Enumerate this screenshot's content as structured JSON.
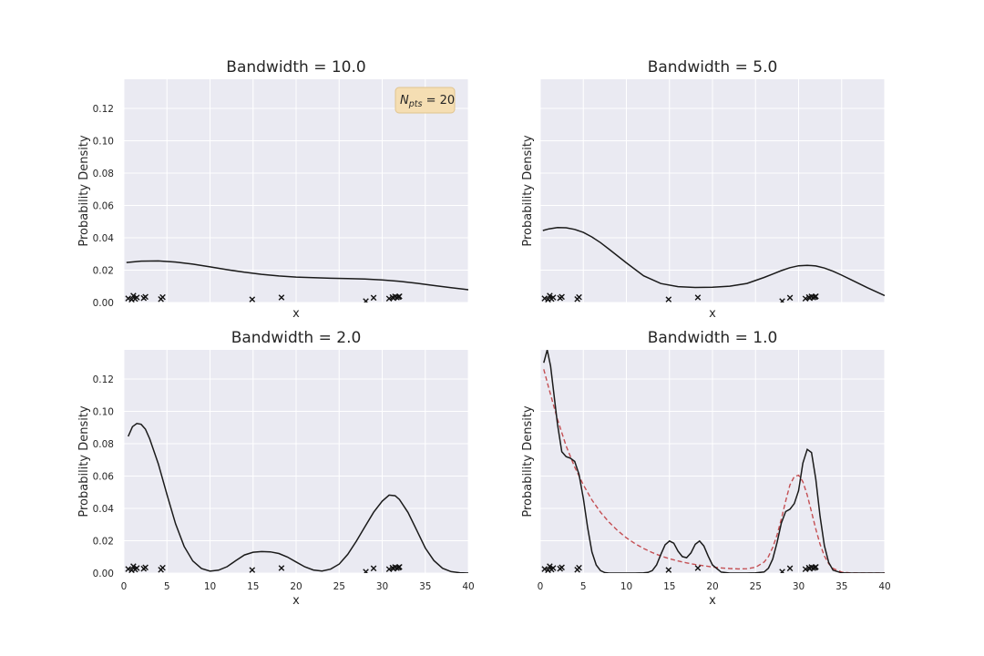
{
  "chart_data": [
    {
      "type": "line",
      "title": "Bandwidth = 10.0",
      "xlabel": "x",
      "ylabel": "Probability Density",
      "xlim": [
        0,
        40
      ],
      "ylim": [
        0,
        0.138
      ],
      "xticks": [
        0,
        5,
        10,
        15,
        20,
        25,
        30,
        35,
        40
      ],
      "yticks": [
        "0.00",
        "0.02",
        "0.04",
        "0.06",
        "0.08",
        "0.10",
        "0.12"
      ],
      "show_xticklabels": false,
      "show_yticklabels": true,
      "annotation": {
        "base": "N",
        "sub": "pts",
        "rest": " = 20"
      },
      "kde": {
        "x": [
          0.3,
          2,
          4,
          6,
          8,
          10,
          12,
          14,
          16,
          18,
          20,
          22,
          24,
          26,
          28,
          30,
          32,
          34,
          36,
          38,
          40
        ],
        "y": [
          0.0247,
          0.0256,
          0.0257,
          0.025,
          0.0237,
          0.022,
          0.0203,
          0.0187,
          0.0174,
          0.0164,
          0.0157,
          0.0153,
          0.015,
          0.0148,
          0.0145,
          0.0139,
          0.0131,
          0.0119,
          0.0105,
          0.0092,
          0.0079
        ]
      },
      "samples": [
        0.5,
        0.9,
        1.1,
        1.3,
        1.5,
        2.3,
        2.5,
        4.3,
        4.5,
        14.9,
        18.3,
        28.1,
        29.0,
        30.8,
        31.2,
        31.3,
        31.5,
        31.7,
        31.9,
        32.0
      ]
    },
    {
      "type": "line",
      "title": "Bandwidth = 5.0",
      "xlabel": "x",
      "ylabel": "Probability Density",
      "xlim": [
        0,
        40
      ],
      "ylim": [
        0,
        0.138
      ],
      "xticks": [
        0,
        5,
        10,
        15,
        20,
        25,
        30,
        35,
        40
      ],
      "yticks": [
        "0.00",
        "0.02",
        "0.04",
        "0.06",
        "0.08",
        "0.10",
        "0.12"
      ],
      "show_xticklabels": false,
      "show_yticklabels": false,
      "kde": {
        "x": [
          0.3,
          1,
          2,
          3,
          4,
          5,
          6,
          7,
          8,
          10,
          12,
          14,
          16,
          18,
          20,
          22,
          24,
          26,
          27,
          28,
          29,
          30,
          31,
          32,
          33,
          34,
          35,
          36,
          38,
          40
        ],
        "y": [
          0.0445,
          0.0455,
          0.0463,
          0.0462,
          0.0452,
          0.0433,
          0.0405,
          0.037,
          0.0329,
          0.0245,
          0.0165,
          0.0117,
          0.0098,
          0.0093,
          0.0094,
          0.0101,
          0.0118,
          0.0155,
          0.0176,
          0.0197,
          0.0215,
          0.0227,
          0.023,
          0.0226,
          0.0213,
          0.0193,
          0.0169,
          0.0143,
          0.0091,
          0.0043
        ]
      },
      "samples": [
        0.5,
        0.9,
        1.1,
        1.3,
        1.5,
        2.3,
        2.5,
        4.3,
        4.5,
        14.9,
        18.3,
        28.1,
        29.0,
        30.8,
        31.2,
        31.3,
        31.5,
        31.7,
        31.9,
        32.0
      ]
    },
    {
      "type": "line",
      "title": "Bandwidth = 2.0",
      "xlabel": "x",
      "ylabel": "Probability Density",
      "xlim": [
        0,
        40
      ],
      "ylim": [
        0,
        0.138
      ],
      "xticks": [
        "0",
        "5",
        "10",
        "15",
        "20",
        "25",
        "30",
        "35",
        "40"
      ],
      "yticks": [
        "0.00",
        "0.02",
        "0.04",
        "0.06",
        "0.08",
        "0.10",
        "0.12"
      ],
      "show_xticklabels": true,
      "show_yticklabels": true,
      "kde": {
        "x": [
          0.5,
          1,
          1.5,
          2,
          2.5,
          3,
          4,
          5,
          6,
          7,
          8,
          9,
          10,
          11,
          12,
          13,
          14,
          15,
          16,
          17,
          18,
          19,
          20,
          21,
          22,
          23,
          24,
          25,
          26,
          27,
          28,
          29,
          30,
          30.8,
          31.5,
          32,
          33,
          34,
          35,
          36,
          37,
          38,
          39,
          40
        ],
        "y": [
          0.0845,
          0.0905,
          0.0925,
          0.092,
          0.089,
          0.083,
          0.0675,
          0.0485,
          0.0305,
          0.0165,
          0.0075,
          0.0028,
          0.0012,
          0.0018,
          0.004,
          0.0078,
          0.0112,
          0.0129,
          0.0133,
          0.0131,
          0.0121,
          0.0099,
          0.0069,
          0.0039,
          0.0019,
          0.0013,
          0.0024,
          0.0056,
          0.0116,
          0.0197,
          0.0287,
          0.0376,
          0.0445,
          0.0482,
          0.0478,
          0.0455,
          0.0375,
          0.0266,
          0.0155,
          0.0078,
          0.003,
          0.0009,
          0.0002,
          0.0
        ]
      },
      "samples": [
        0.5,
        0.9,
        1.1,
        1.3,
        1.5,
        2.3,
        2.5,
        4.3,
        4.5,
        14.9,
        18.3,
        28.1,
        29.0,
        30.8,
        31.2,
        31.3,
        31.5,
        31.7,
        31.9,
        32.0
      ]
    },
    {
      "type": "line",
      "title": "Bandwidth = 1.0",
      "xlabel": "x",
      "ylabel": "Probability Density",
      "xlim": [
        0,
        40
      ],
      "ylim": [
        0,
        0.138
      ],
      "xticks": [
        "0",
        "5",
        "10",
        "15",
        "20",
        "25",
        "30",
        "35",
        "40"
      ],
      "yticks": [
        "0.00",
        "0.02",
        "0.04",
        "0.06",
        "0.08",
        "0.10",
        "0.12"
      ],
      "show_xticklabels": true,
      "show_yticklabels": false,
      "kde": {
        "x": [
          0.4,
          0.8,
          1.2,
          1.6,
          2.0,
          2.5,
          3.0,
          3.5,
          4.0,
          4.5,
          5.0,
          5.5,
          6.0,
          6.5,
          7.0,
          7.5,
          8.0,
          9.0,
          10,
          11,
          12,
          12.5,
          13,
          13.5,
          14,
          14.5,
          15,
          15.5,
          16,
          16.5,
          17,
          17.5,
          18,
          18.5,
          19,
          19.5,
          20,
          21,
          22,
          23,
          24,
          25,
          26,
          26.5,
          27,
          27.5,
          28,
          28.5,
          29,
          29.5,
          30,
          30.5,
          31,
          31.5,
          32,
          32.5,
          33,
          33.5,
          34,
          35,
          36,
          37,
          38,
          39,
          40
        ],
        "y": [
          0.13,
          0.138,
          0.128,
          0.11,
          0.092,
          0.075,
          0.072,
          0.071,
          0.069,
          0.061,
          0.046,
          0.028,
          0.013,
          0.005,
          0.0015,
          0.0003,
          0.0,
          0.0,
          0.0,
          0.0,
          0.0001,
          0.0004,
          0.0015,
          0.005,
          0.0115,
          0.0175,
          0.0198,
          0.0185,
          0.0135,
          0.0102,
          0.0095,
          0.0125,
          0.0178,
          0.0198,
          0.0168,
          0.0105,
          0.005,
          0.0006,
          0.0,
          0.0,
          0.0,
          0.0001,
          0.0007,
          0.003,
          0.0087,
          0.019,
          0.031,
          0.038,
          0.0395,
          0.043,
          0.051,
          0.068,
          0.0765,
          0.0745,
          0.058,
          0.035,
          0.017,
          0.0065,
          0.0018,
          0.0001,
          0.0,
          0.0,
          0.0,
          0.0,
          0.0
        ]
      },
      "reference": {
        "x": [
          0.4,
          1,
          2,
          3,
          4,
          5,
          6,
          7,
          8,
          9,
          10,
          11,
          12,
          13,
          14,
          15,
          16,
          17,
          18,
          19,
          20,
          21,
          22,
          23,
          24,
          25,
          26,
          26.5,
          27,
          27.5,
          28,
          28.5,
          29,
          29.5,
          30,
          30.5,
          31,
          31.5,
          32,
          32.5,
          33,
          33.5,
          34,
          35,
          36,
          37,
          38,
          39,
          40
        ],
        "y": [
          0.126,
          0.114,
          0.095,
          0.0785,
          0.0655,
          0.0545,
          0.0452,
          0.0376,
          0.0314,
          0.0262,
          0.0218,
          0.0182,
          0.0152,
          0.0127,
          0.0106,
          0.0089,
          0.0075,
          0.0063,
          0.0053,
          0.0045,
          0.0038,
          0.0032,
          0.0028,
          0.0026,
          0.0027,
          0.0036,
          0.0068,
          0.0102,
          0.0158,
          0.0236,
          0.0335,
          0.0445,
          0.0545,
          0.0597,
          0.0605,
          0.0565,
          0.0482,
          0.0378,
          0.0272,
          0.0178,
          0.0106,
          0.0058,
          0.0029,
          0.0006,
          0.0001,
          0.0,
          0.0,
          0.0,
          0.0
        ]
      },
      "samples": [
        0.5,
        0.9,
        1.1,
        1.3,
        1.5,
        2.3,
        2.5,
        4.3,
        4.5,
        14.9,
        18.3,
        28.1,
        29.0,
        30.8,
        31.2,
        31.3,
        31.5,
        31.7,
        31.9,
        32.0
      ]
    }
  ],
  "colors": {
    "axes_bg": "#eaeaf2",
    "grid": "#ffffff",
    "kde_line": "#1a1a1a",
    "reference_line": "#c44e52",
    "marker": "#111111",
    "annotation_bg": "#f5deb3",
    "annotation_edge": "#e0c48f"
  }
}
